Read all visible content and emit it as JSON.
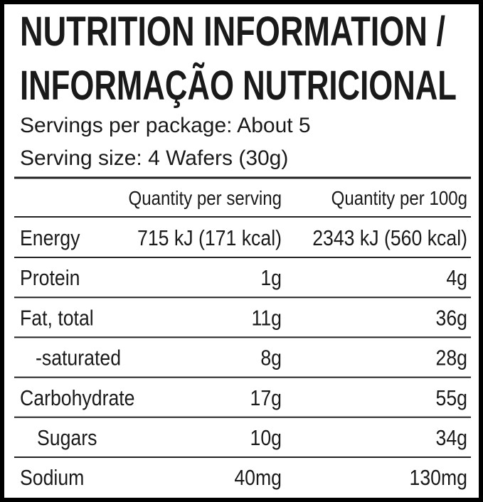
{
  "header": {
    "title_lines": [
      "NUTRITION INFORMATION /",
      "INFORMAÇÃO NUTRICIONAL"
    ],
    "servings_per_package": "Servings per package: About 5",
    "serving_size": "Serving size: 4 Wafers (30g)"
  },
  "table": {
    "columns": [
      "Quantity per serving",
      "Quantity per 100g"
    ],
    "rows": [
      [
        "Energy",
        "715 kJ (171 kcal)",
        "2343 kJ (560 kcal)"
      ],
      [
        "Protein",
        "1g",
        "4g"
      ],
      [
        "Fat, total",
        "11g",
        "36g"
      ],
      [
        "-saturated",
        "8g",
        "28g"
      ],
      [
        "Carbohydrate",
        "17g",
        "55g"
      ],
      [
        "Sugars",
        "10g",
        "34g"
      ],
      [
        "Sodium",
        "40mg",
        "130mg"
      ]
    ]
  }
}
